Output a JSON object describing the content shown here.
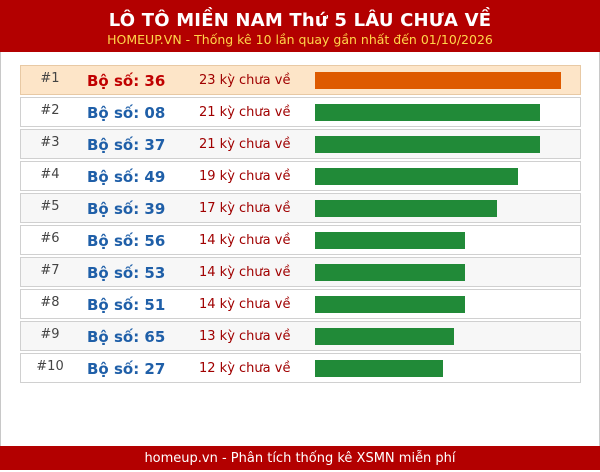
{
  "header": {
    "title": "LÔ TÔ MIỀN NAM Thứ 5 LÂU CHƯA VỀ",
    "subtitle": "HOMEUP.VN - Thống kê 10 lần quay gần nhất đến 01/10/2026"
  },
  "rows": [
    {
      "rank": "#1",
      "number": "Bộ số: 36",
      "count": "23 kỳ chưa về",
      "days": 23
    },
    {
      "rank": "#2",
      "number": "Bộ số: 08",
      "count": "21 kỳ chưa về",
      "days": 21
    },
    {
      "rank": "#3",
      "number": "Bộ số: 37",
      "count": "21 kỳ chưa về",
      "days": 21
    },
    {
      "rank": "#4",
      "number": "Bộ số: 49",
      "count": "19 kỳ chưa về",
      "days": 19
    },
    {
      "rank": "#5",
      "number": "Bộ số: 39",
      "count": "17 kỳ chưa về",
      "days": 17
    },
    {
      "rank": "#6",
      "number": "Bộ số: 56",
      "count": "14 kỳ chưa về",
      "days": 14
    },
    {
      "rank": "#7",
      "number": "Bộ số: 53",
      "count": "14 kỳ chưa về",
      "days": 14
    },
    {
      "rank": "#8",
      "number": "Bộ số: 51",
      "count": "14 kỳ chưa về",
      "days": 14
    },
    {
      "rank": "#9",
      "number": "Bộ số: 65",
      "count": "13 kỳ chưa về",
      "days": 13
    },
    {
      "rank": "#10",
      "number": "Bộ số: 27",
      "count": "12 kỳ chưa về",
      "days": 12
    }
  ],
  "footer": {
    "text": "homeup.vn - Phân tích thống kê XSMN miễn phí"
  },
  "colors": {
    "brand_red": "#b30000",
    "subtitle_gold": "#ffd54a",
    "top_bar": "#de5a00",
    "bar": "#218a38",
    "top_row_bg": "#fde5c8"
  }
}
